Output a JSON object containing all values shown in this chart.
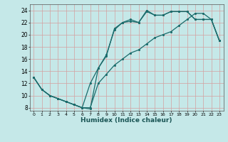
{
  "xlabel": "Humidex (Indice chaleur)",
  "bg_color": "#c5e8e8",
  "grid_color": "#d4a0a0",
  "line_color": "#1a6b6b",
  "xlim": [
    -0.5,
    23.5
  ],
  "ylim": [
    7.5,
    25
  ],
  "xticks": [
    0,
    1,
    2,
    3,
    4,
    5,
    6,
    7,
    8,
    9,
    10,
    11,
    12,
    13,
    14,
    15,
    16,
    17,
    18,
    19,
    20,
    21,
    22,
    23
  ],
  "yticks": [
    8,
    10,
    12,
    14,
    16,
    18,
    20,
    22,
    24
  ],
  "line1_x": [
    0,
    1,
    2,
    3,
    4,
    5,
    6,
    7,
    8,
    9,
    10,
    11,
    12,
    13,
    14,
    15,
    16,
    17,
    18,
    19,
    20,
    21,
    22,
    23
  ],
  "line1_y": [
    13,
    11,
    10,
    9.5,
    9,
    8.5,
    8,
    7.8,
    14.5,
    16.7,
    20.8,
    22,
    22.2,
    22,
    23.8,
    23.2,
    23.2,
    23.8,
    23.8,
    23.8,
    22.5,
    22.5,
    22.5,
    19.0
  ],
  "line2_x": [
    0,
    1,
    2,
    3,
    4,
    5,
    6,
    7,
    8,
    9,
    10,
    11,
    12,
    13,
    14,
    15,
    16,
    17,
    18,
    19,
    20,
    21,
    22,
    23
  ],
  "line2_y": [
    13,
    11,
    10,
    9.5,
    9,
    8.5,
    8,
    12,
    14.5,
    16.5,
    21,
    22,
    22.5,
    22,
    24.0,
    23.2,
    23.2,
    23.8,
    23.8,
    23.8,
    22.5,
    22.5,
    22.5,
    19.0
  ],
  "line3_x": [
    0,
    1,
    2,
    3,
    4,
    5,
    6,
    7,
    8,
    9,
    10,
    11,
    12,
    13,
    14,
    15,
    16,
    17,
    18,
    19,
    20,
    21,
    22,
    23
  ],
  "line3_y": [
    13,
    11,
    10,
    9.5,
    9,
    8.5,
    8,
    8,
    12,
    13.5,
    15.0,
    16.0,
    17.0,
    17.5,
    18.5,
    19.5,
    20.0,
    20.5,
    21.5,
    22.5,
    23.5,
    23.5,
    22.5,
    19.0
  ]
}
